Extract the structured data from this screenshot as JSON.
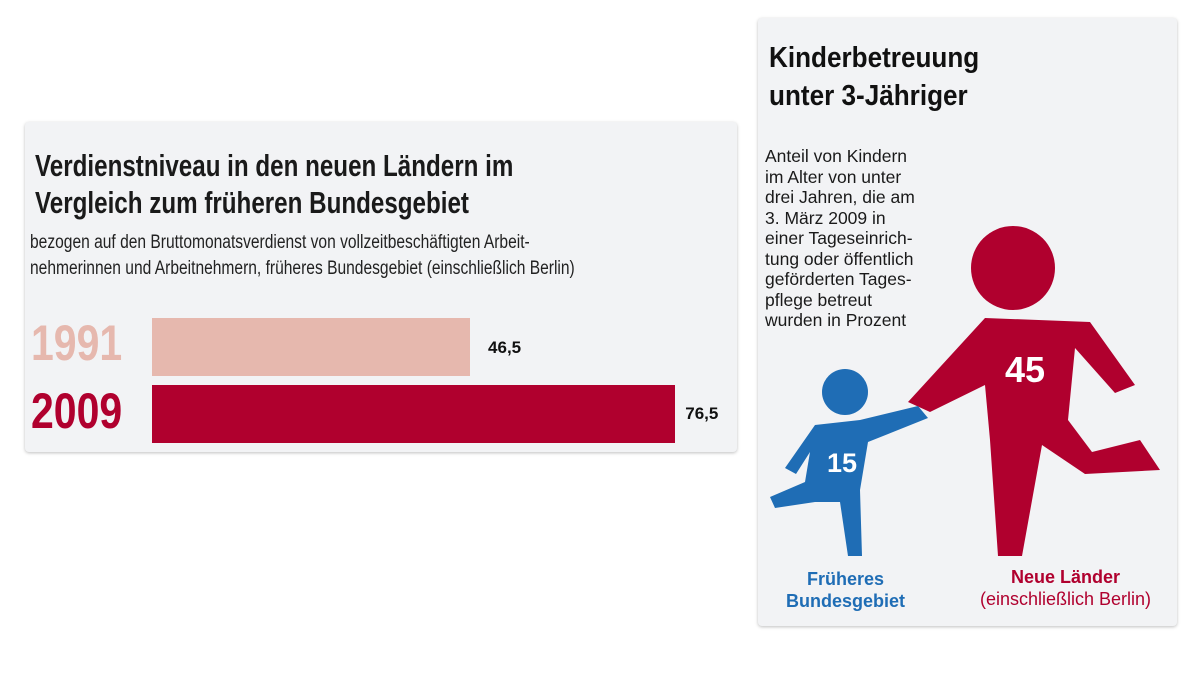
{
  "earnings_panel": {
    "title_lines": [
      "Verdienstniveau in den neuen Ländern im",
      "Vergleich zum früheren Bundesgebiet"
    ],
    "subtitle_lines": [
      "bezogen auf den Bruttomonatsverdienst von vollzeitbeschäftigten Arbeit-",
      "nehmerinnen und Arbeitnehmern, früheres Bundesgebiet (einschließlich Berlin)"
    ]
  },
  "childcare_panel": {
    "title_lines": [
      "Kinderbetreuung",
      "unter 3-Jähriger"
    ],
    "description_lines": [
      "Anteil von Kindern",
      "im Alter von unter",
      "drei Jahren, die am",
      "3. März 2009 in",
      "einer Tageseinrich-",
      "tung oder öffentlich",
      "geförderten Tages-",
      "pflege betreut",
      "wurden in Prozent"
    ],
    "west_label_lines": [
      "Früheres",
      "Bundesgebiet"
    ],
    "east_label": "Neue Länder",
    "east_sublabel": "(einschließlich Berlin)"
  },
  "chart_data": [
    {
      "type": "bar",
      "orientation": "horizontal",
      "title": "Verdienstniveau in den neuen Ländern im Vergleich zum früheren Bundesgebiet",
      "categories": [
        "1991",
        "2009"
      ],
      "values": [
        46.5,
        76.5
      ],
      "value_labels": [
        "46,5",
        "76,5"
      ],
      "xlim": [
        0,
        100
      ],
      "grid": false,
      "colors": [
        "#e6b8ae",
        "#b0002e"
      ]
    },
    {
      "type": "pictogram",
      "title": "Kinderbetreuung unter 3-Jähriger",
      "categories": [
        "Früheres Bundesgebiet",
        "Neue Länder (einschließlich Berlin)"
      ],
      "values": [
        15,
        45
      ],
      "value_labels": [
        "15",
        "45"
      ],
      "unit": "Prozent",
      "colors": [
        "#1f6db5",
        "#b0002e"
      ]
    }
  ]
}
